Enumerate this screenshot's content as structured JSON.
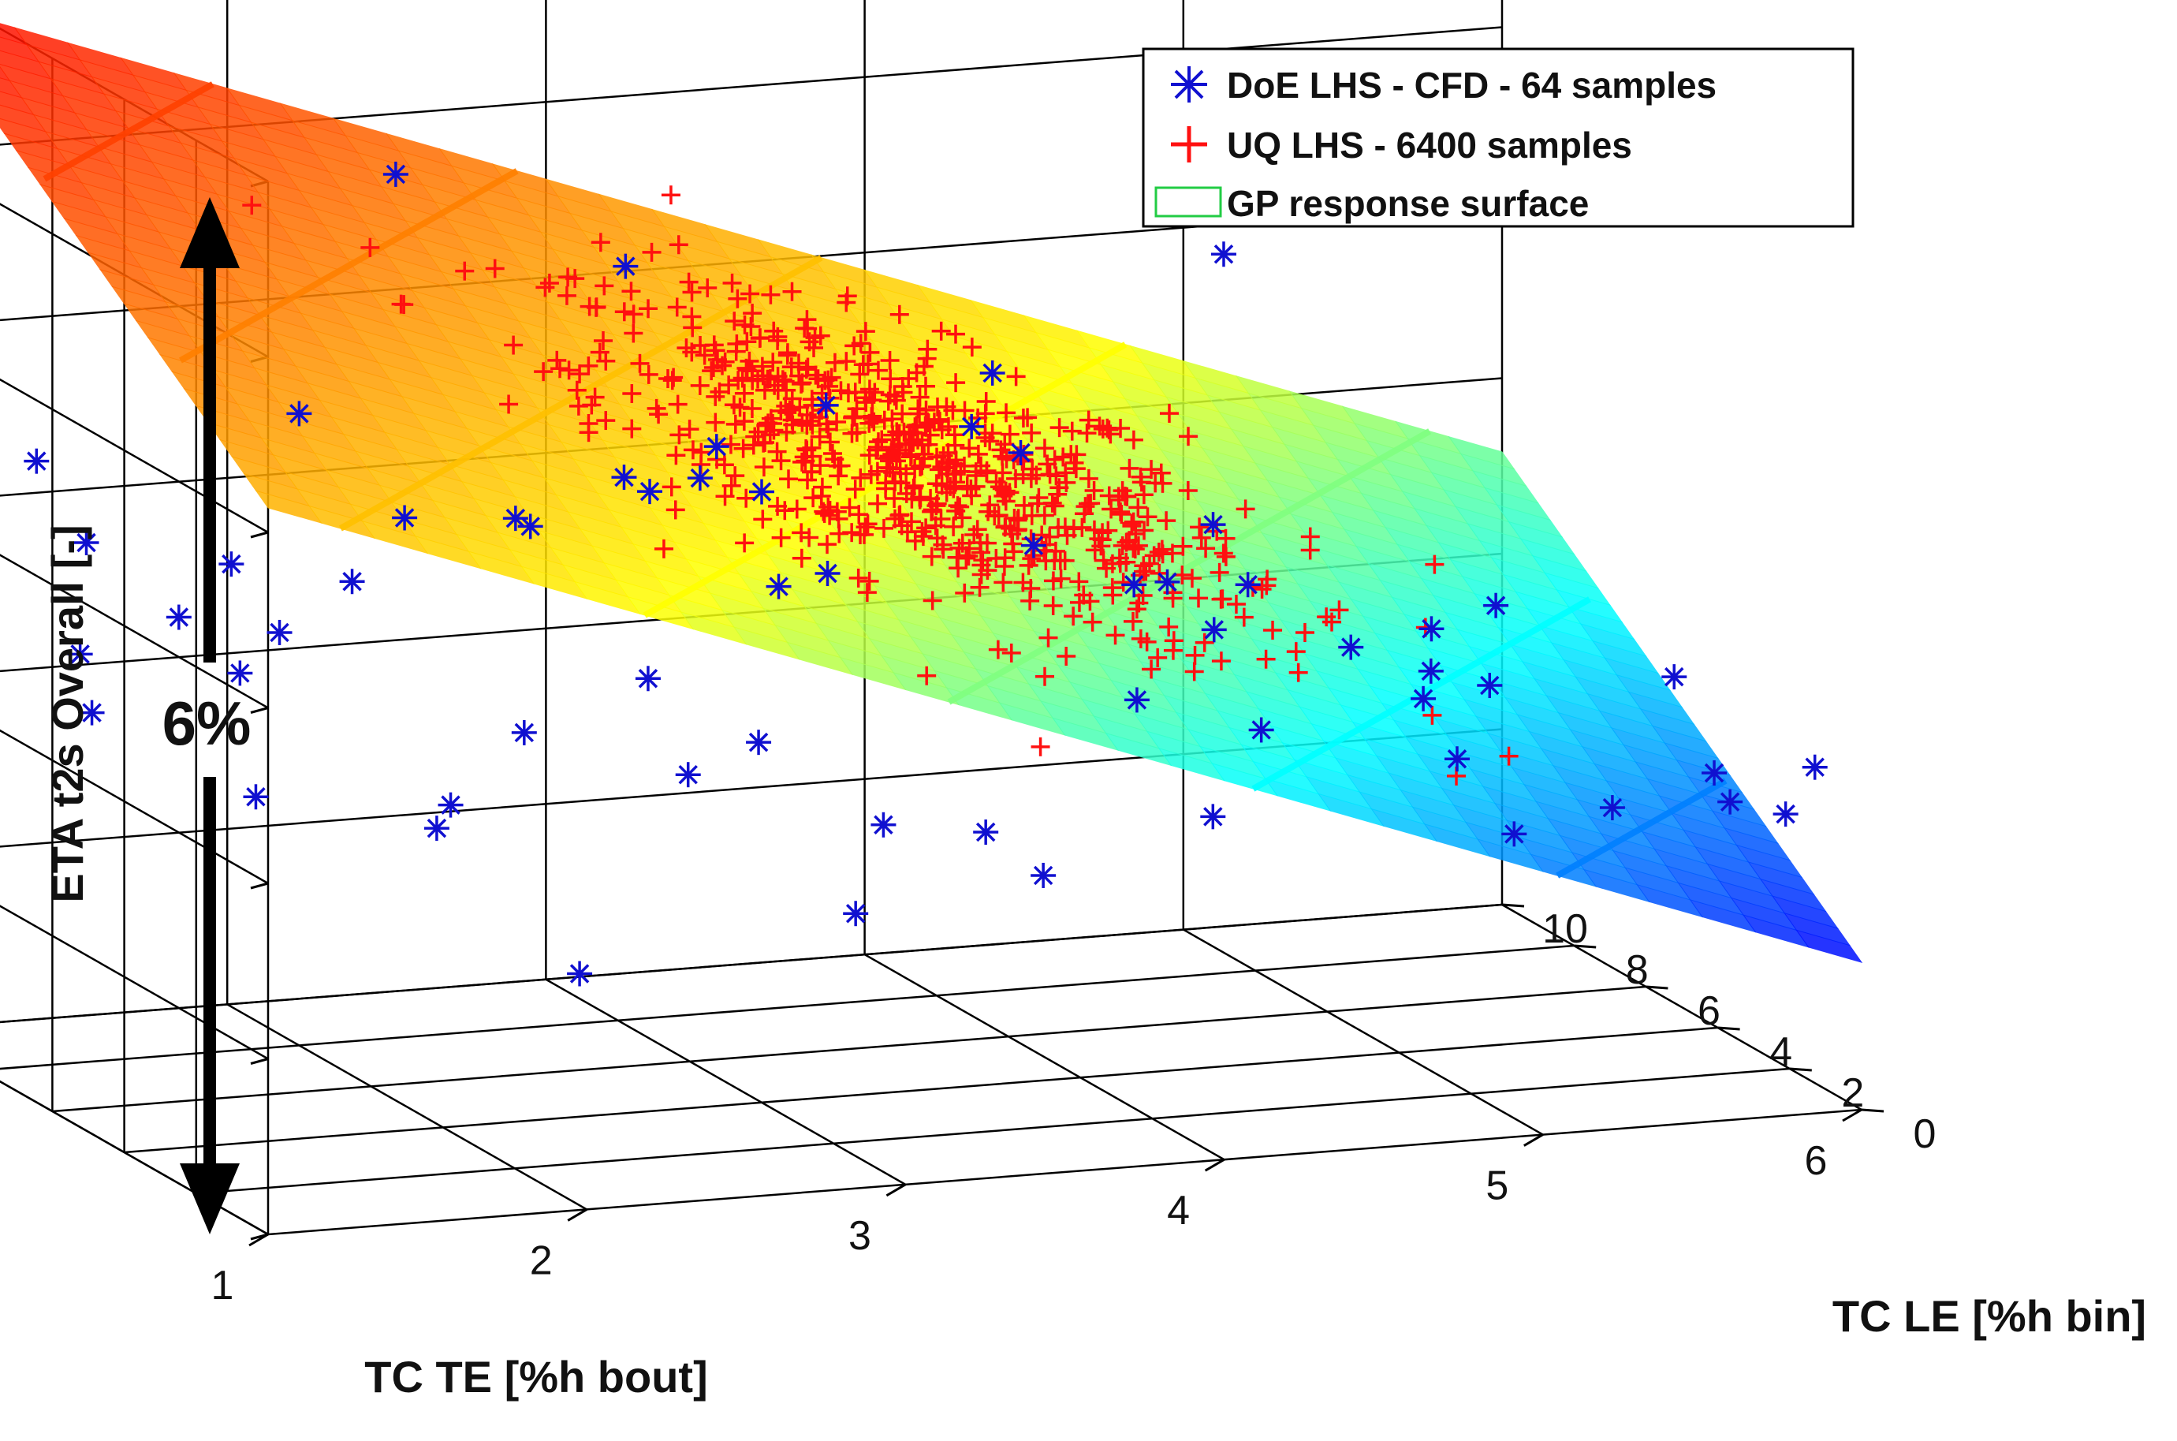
{
  "chart_data": {
    "type": "scatter",
    "title": "",
    "x_axis": {
      "label": "TC TE [%h bout]",
      "ticks": [
        "1",
        "2",
        "3",
        "4",
        "5",
        "6"
      ],
      "range": [
        1,
        6
      ]
    },
    "y_axis": {
      "label": "TC LE [%h bin]",
      "ticks": [
        "0",
        "2",
        "4",
        "6",
        "8",
        "10"
      ],
      "range": [
        0,
        10
      ]
    },
    "z_axis": {
      "label": "ETA t2s Overall [-]",
      "tick_labels_shown": false
    },
    "annotation": {
      "text": "6%",
      "meaning": "range of ETA t2s Overall spanned by the vertical arrow"
    },
    "legend": {
      "position": "top-right",
      "entries": [
        {
          "label": "DoE LHS - CFD - 64 samples",
          "color": "#1010d0",
          "marker": "asterisk"
        },
        {
          "label": "UQ LHS - 6400 samples",
          "color": "#ff1010",
          "marker": "plus"
        },
        {
          "label": "GP response surface",
          "color": "#22cc44",
          "marker": "surface"
        }
      ]
    },
    "colormap": [
      "#0000ff",
      "#00ffff",
      "#ffff00",
      "#ff8000",
      "#ff0000"
    ],
    "series": [
      {
        "name": "DoE LHS - CFD - 64 samples",
        "color": "#1010d0",
        "points": [
          [
            5.4,
            0.3,
            1.0
          ],
          [
            2.3,
            9.8,
            0.98
          ],
          [
            2.1,
            6.2,
            0.86
          ],
          [
            4.1,
            0.9,
            0.84
          ],
          [
            2.9,
            6.9,
            0.74
          ],
          [
            3.6,
            2.9,
            0.7
          ],
          [
            1.3,
            9.1,
            0.55
          ],
          [
            2.0,
            8.0,
            0.6
          ],
          [
            3.7,
            3.0,
            0.62
          ],
          [
            1.6,
            5.0,
            0.46
          ],
          [
            3.0,
            4.0,
            0.58
          ],
          [
            2.5,
            6.0,
            0.52
          ],
          [
            4.3,
            2.0,
            0.5
          ],
          [
            3.4,
            8.8,
            0.52
          ],
          [
            1.2,
            7.0,
            0.41
          ],
          [
            3.1,
            6.6,
            0.54
          ],
          [
            4.0,
            5.3,
            0.48
          ],
          [
            2.7,
            4.5,
            0.4
          ],
          [
            5.0,
            3.1,
            0.42
          ],
          [
            1.8,
            2.4,
            0.32
          ],
          [
            1.0,
            4.9,
            0.4
          ],
          [
            4.9,
            1.5,
            0.33
          ],
          [
            4.8,
            7.4,
            0.44
          ],
          [
            3.2,
            9.6,
            0.48
          ],
          [
            5.7,
            1.0,
            0.28
          ],
          [
            6.0,
            1.3,
            0.3
          ],
          [
            2.6,
            2.5,
            0.35
          ],
          [
            4.6,
            5.6,
            0.38
          ],
          [
            3.1,
            1.5,
            0.31
          ],
          [
            1.3,
            3.0,
            0.35
          ],
          [
            2.9,
            0.5,
            0.25
          ],
          [
            2.0,
            0.2,
            0.22
          ],
          [
            3.5,
            0.6,
            0.27
          ],
          [
            6.1,
            6.1,
            0.29
          ],
          [
            5.3,
            8.0,
            0.3
          ],
          [
            4.2,
            4.2,
            0.35
          ],
          [
            2.5,
            9.5,
            0.46
          ],
          [
            2.2,
            8.3,
            0.43
          ],
          [
            5.1,
            4.0,
            0.36
          ],
          [
            4.5,
            3.4,
            0.33
          ],
          [
            5.2,
            5.1,
            0.31
          ],
          [
            3.5,
            6.6,
            0.44
          ],
          [
            1.6,
            7.8,
            0.42
          ],
          [
            1.9,
            9.0,
            0.44
          ],
          [
            3.1,
            8.0,
            0.5
          ],
          [
            4.2,
            8.8,
            0.52
          ],
          [
            5.5,
            2.5,
            0.25
          ],
          [
            6.0,
            4.1,
            0.24
          ],
          [
            5.6,
            6.8,
            0.28
          ],
          [
            4.8,
            9.6,
            0.34
          ],
          [
            3.5,
            2.2,
            0.28
          ],
          [
            2.3,
            4.4,
            0.36
          ],
          [
            1.6,
            6.1,
            0.4
          ],
          [
            2.9,
            3.2,
            0.36
          ],
          [
            4.1,
            1.2,
            0.3
          ],
          [
            3.2,
            5.3,
            0.46
          ],
          [
            2.6,
            7.3,
            0.5
          ],
          [
            1.9,
            2.9,
            0.33
          ],
          [
            5.0,
            0.8,
            0.27
          ],
          [
            3.8,
            9.3,
            0.54
          ],
          [
            4.6,
            6.9,
            0.4
          ],
          [
            1.4,
            8.6,
            0.48
          ],
          [
            5.8,
            8.4,
            0.32
          ],
          [
            6.1,
            3.0,
            0.22
          ]
        ]
      },
      {
        "name": "UQ LHS - 6400 samples",
        "color": "#ff1010",
        "distribution": {
          "x_mean": 3.6,
          "y_mean": 4.8,
          "z_range": [
            0.45,
            0.66
          ],
          "count": 6400
        }
      }
    ]
  }
}
